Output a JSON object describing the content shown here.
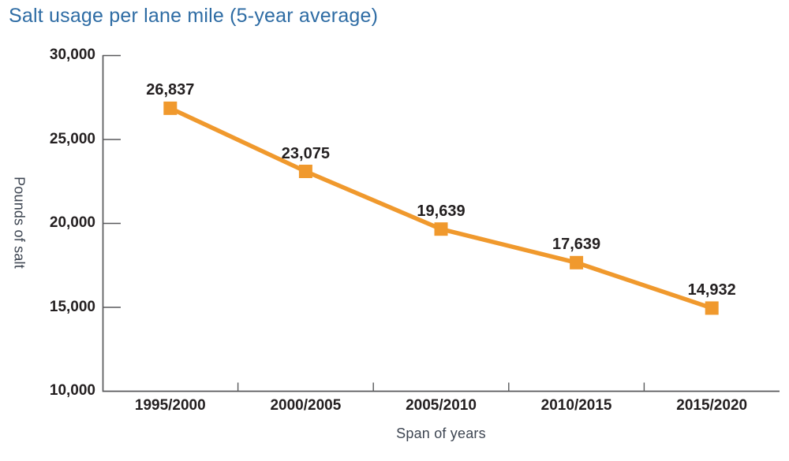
{
  "title": "Salt usage per lane mile (5-year average)",
  "colors": {
    "accent_orange": "#f0992d",
    "title_blue": "#2e6ca4",
    "label_dark": "#231f20",
    "axis_gray": "#58595b",
    "muted_text": "#3d4551",
    "background": "#ffffff"
  },
  "chart_data": {
    "type": "line",
    "title": "Salt usage per lane mile (5-year average)",
    "categories": [
      "1995/2000",
      "2000/2005",
      "2005/2010",
      "2010/2015",
      "2015/2020"
    ],
    "series": [
      {
        "name": "Salt usage per lane mile (5-year average)",
        "values": [
          26837,
          23075,
          19639,
          17639,
          14932
        ],
        "labels": [
          "26,837",
          "23,075",
          "19,639",
          "17,639",
          "14,932"
        ]
      }
    ],
    "xlabel": "Span of years",
    "ylabel": "Pounds of salt",
    "ylim": [
      10000,
      30000
    ],
    "ytick_values": [
      30000,
      25000,
      20000,
      15000,
      10000
    ],
    "ytick_labels": [
      "30,000",
      "25,000",
      "20,000",
      "15,000",
      "10,000"
    ],
    "grid": false,
    "legend_position": "none",
    "marker": "square",
    "line_color": "#f0992d",
    "marker_color": "#f0992d"
  }
}
